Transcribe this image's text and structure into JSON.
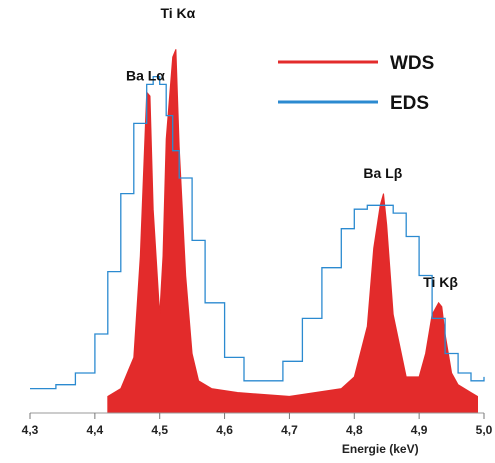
{
  "chart_data": {
    "type": "area",
    "xlabel": "Energie (keV)",
    "ylabel": "",
    "xlim": [
      4.3,
      5.0
    ],
    "ylim": [
      0,
      100
    ],
    "x_ticks": [
      "4,3",
      "4,4",
      "4,5",
      "4,6",
      "4,7",
      "4,8",
      "4,9",
      "5,0"
    ],
    "legend_position": "top-right",
    "series": [
      {
        "name": "WDS",
        "color": "#e32b2b",
        "style": "filled",
        "x": [
          4.42,
          4.44,
          4.46,
          4.47,
          4.48,
          4.485,
          4.49,
          4.5,
          4.505,
          4.51,
          4.52,
          4.525,
          4.53,
          4.54,
          4.55,
          4.56,
          4.58,
          4.62,
          4.7,
          4.78,
          4.8,
          4.82,
          4.83,
          4.84,
          4.845,
          4.85,
          4.86,
          4.88,
          4.9,
          4.91,
          4.92,
          4.93,
          4.935,
          4.94,
          4.95,
          4.96,
          4.98,
          4.99
        ],
        "y": [
          4,
          6,
          14,
          40,
          82,
          81,
          52,
          25,
          40,
          70,
          91,
          93,
          68,
          35,
          15,
          8,
          6,
          5,
          4,
          6,
          9,
          22,
          42,
          53,
          56,
          48,
          25,
          9,
          9,
          15,
          25,
          28,
          27,
          20,
          10,
          7,
          5,
          4
        ]
      },
      {
        "name": "EDS",
        "color": "#2b8ad0",
        "style": "line",
        "x": [
          4.3,
          4.34,
          4.37,
          4.4,
          4.42,
          4.44,
          4.46,
          4.48,
          4.49,
          4.5,
          4.51,
          4.52,
          4.53,
          4.55,
          4.57,
          4.6,
          4.63,
          4.66,
          4.69,
          4.72,
          4.75,
          4.78,
          4.8,
          4.82,
          4.84,
          4.86,
          4.88,
          4.9,
          4.92,
          4.94,
          4.96,
          4.98,
          5.0
        ],
        "y": [
          6,
          7,
          10,
          20,
          36,
          56,
          74,
          84,
          86,
          84,
          76,
          67,
          60,
          44,
          28,
          14,
          8,
          8,
          13,
          24,
          37,
          47,
          52,
          53,
          53,
          51,
          45,
          35,
          24,
          15,
          10,
          8,
          9
        ]
      }
    ],
    "annotations": [
      {
        "text": "Ba Lα",
        "x": 4.478,
        "y": 84
      },
      {
        "text": "Ti Kα",
        "x": 4.528,
        "y": 100
      },
      {
        "text": "Ba Lβ",
        "x": 4.844,
        "y": 59
      },
      {
        "text": "Ti Kβ",
        "x": 4.933,
        "y": 31
      }
    ]
  }
}
